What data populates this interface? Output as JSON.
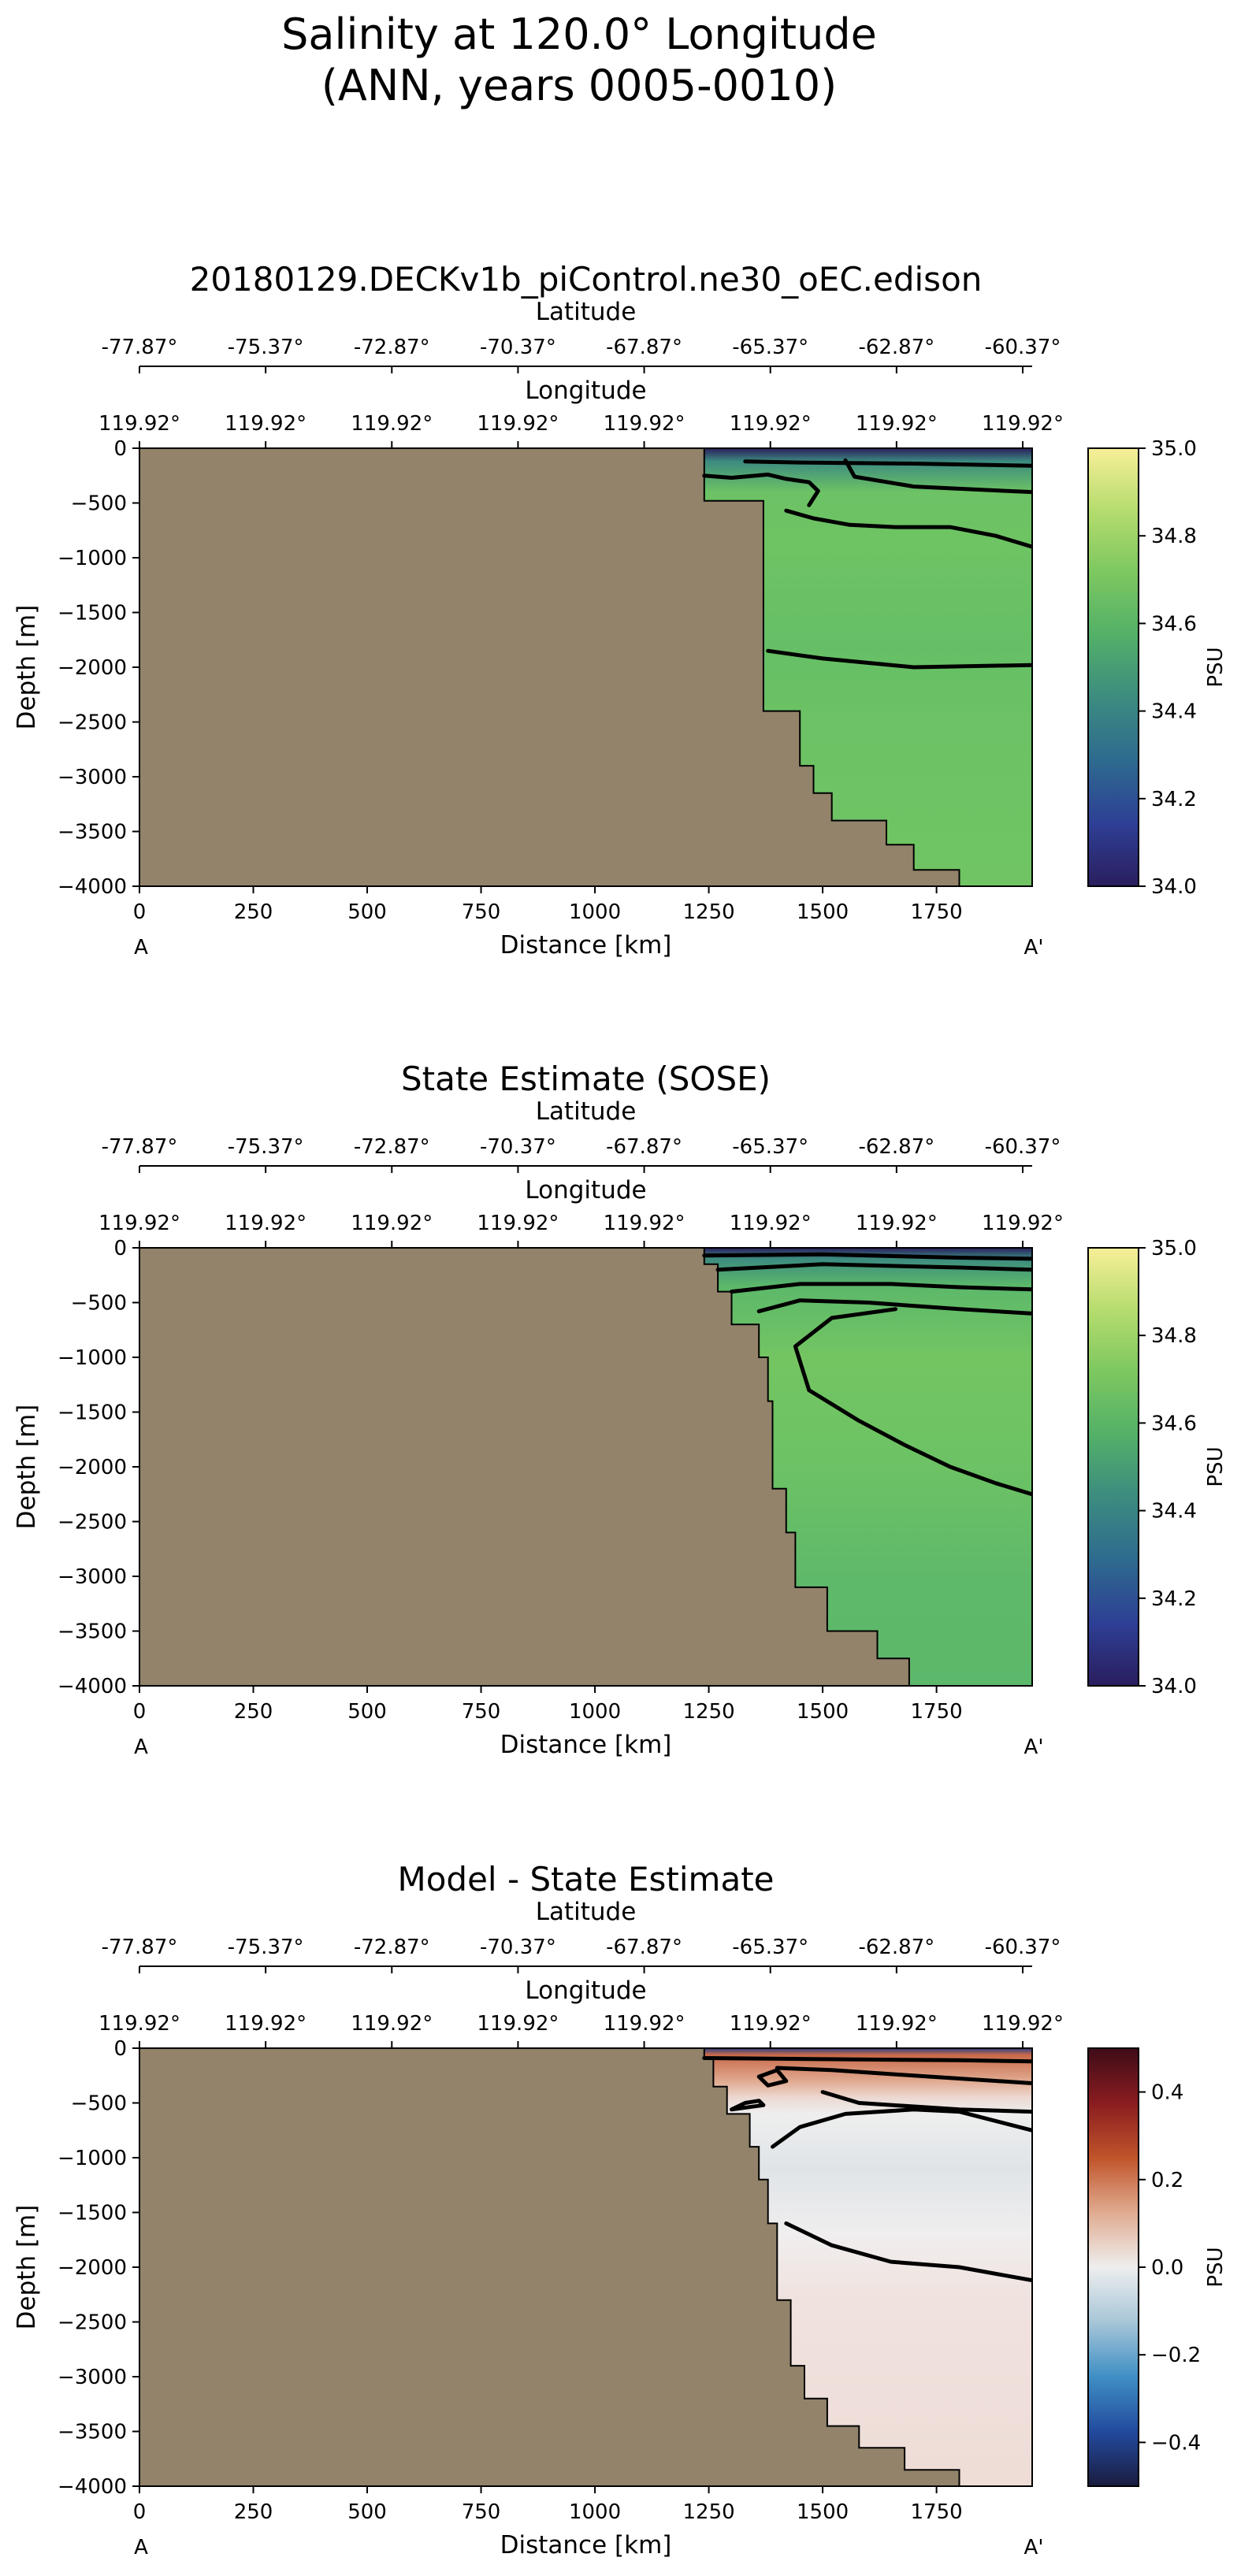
{
  "figure": {
    "title_line1": "Salinity at 120.0° Longitude",
    "title_line2": "(ANN, years 0005-0010)"
  },
  "chart_data": [
    {
      "type": "heatmap",
      "title": "20180129.DECKv1b_piControl.ne30_oEC.edison",
      "xlabel": "Distance [km]",
      "ylabel": "Depth [m]",
      "xlim": [
        0,
        1960
      ],
      "ylim": [
        -4000,
        0
      ],
      "x_ticks": [
        0,
        250,
        500,
        750,
        1000,
        1250,
        1500,
        1750
      ],
      "y_ticks": [
        0,
        -500,
        -1000,
        -1500,
        -2000,
        -2500,
        -3000,
        -3500,
        -4000
      ],
      "y_tick_labels": [
        "0",
        "−500",
        "−1000",
        "−1500",
        "−2000",
        "−2500",
        "−3000",
        "−3500",
        "−4000"
      ],
      "lat_axis_label": "Latitude",
      "lat_ticks": [
        "-77.87°",
        "-75.37°",
        "-72.87°",
        "-70.37°",
        "-67.87°",
        "-65.37°",
        "-62.87°",
        "-60.37°"
      ],
      "lon_axis_label": "Longitude",
      "lon_ticks": [
        "119.92°",
        "119.92°",
        "119.92°",
        "119.92°",
        "119.92°",
        "119.92°",
        "119.92°",
        "119.92°"
      ],
      "end_labels": [
        "A",
        "A'"
      ],
      "colorbar": {
        "label": "PSU",
        "min": 34.0,
        "max": 35.0,
        "ticks": [
          35.0,
          34.8,
          34.6,
          34.4,
          34.2,
          34.0
        ],
        "tick_labels": [
          "35.0",
          "34.8",
          "34.6",
          "34.4",
          "34.2",
          "34.0"
        ],
        "colors": [
          "#2a1e5e",
          "#2e3f95",
          "#2e6a8f",
          "#3c8b80",
          "#52b068",
          "#7cc760",
          "#b5dc6e",
          "#f8ef98"
        ]
      },
      "bathymetry": [
        [
          1240,
          0
        ],
        [
          1240,
          -480
        ],
        [
          1370,
          -480
        ],
        [
          1370,
          -2400
        ],
        [
          1450,
          -2400
        ],
        [
          1450,
          -2900
        ],
        [
          1480,
          -2900
        ],
        [
          1480,
          -3150
        ],
        [
          1520,
          -3150
        ],
        [
          1520,
          -3400
        ],
        [
          1640,
          -3400
        ],
        [
          1640,
          -3620
        ],
        [
          1700,
          -3620
        ],
        [
          1700,
          -3850
        ],
        [
          1800,
          -3850
        ],
        [
          1800,
          -4000
        ]
      ],
      "field": [
        [
          0,
          "#2a1e5e"
        ],
        [
          -120,
          "#3c8b80"
        ],
        [
          -400,
          "#6cc264"
        ],
        [
          -900,
          "#6ec363"
        ],
        [
          -1800,
          "#66bf66"
        ],
        [
          -2500,
          "#6cc264"
        ],
        [
          -4000,
          "#70c463"
        ]
      ],
      "contours": [
        [
          [
            1330,
            -120
          ],
          [
            1450,
            -130
          ],
          [
            1700,
            -140
          ],
          [
            1960,
            -160
          ]
        ],
        [
          [
            1240,
            -250
          ],
          [
            1300,
            -270
          ],
          [
            1380,
            -240
          ],
          [
            1420,
            -280
          ],
          [
            1470,
            -310
          ],
          [
            1490,
            -390
          ],
          [
            1470,
            -520
          ]
        ],
        [
          [
            1550,
            -110
          ],
          [
            1570,
            -260
          ],
          [
            1700,
            -350
          ],
          [
            1850,
            -380
          ],
          [
            1960,
            -400
          ]
        ],
        [
          [
            1420,
            -570
          ],
          [
            1480,
            -640
          ],
          [
            1560,
            -700
          ],
          [
            1660,
            -720
          ],
          [
            1780,
            -720
          ],
          [
            1880,
            -800
          ],
          [
            1960,
            -900
          ]
        ],
        [
          [
            1380,
            -1850
          ],
          [
            1500,
            -1920
          ],
          [
            1700,
            -2000
          ],
          [
            1960,
            -1980
          ]
        ]
      ]
    },
    {
      "type": "heatmap",
      "title": "State Estimate (SOSE)",
      "xlabel": "Distance [km]",
      "ylabel": "Depth [m]",
      "xlim": [
        0,
        1960
      ],
      "ylim": [
        -4000,
        0
      ],
      "x_ticks": [
        0,
        250,
        500,
        750,
        1000,
        1250,
        1500,
        1750
      ],
      "y_ticks": [
        0,
        -500,
        -1000,
        -1500,
        -2000,
        -2500,
        -3000,
        -3500,
        -4000
      ],
      "y_tick_labels": [
        "0",
        "−500",
        "−1000",
        "−1500",
        "−2000",
        "−2500",
        "−3000",
        "−3500",
        "−4000"
      ],
      "lat_axis_label": "Latitude",
      "lat_ticks": [
        "-77.87°",
        "-75.37°",
        "-72.87°",
        "-70.37°",
        "-67.87°",
        "-65.37°",
        "-62.87°",
        "-60.37°"
      ],
      "lon_axis_label": "Longitude",
      "lon_ticks": [
        "119.92°",
        "119.92°",
        "119.92°",
        "119.92°",
        "119.92°",
        "119.92°",
        "119.92°",
        "119.92°"
      ],
      "end_labels": [
        "A",
        "A'"
      ],
      "colorbar": {
        "label": "PSU",
        "min": 34.0,
        "max": 35.0,
        "ticks": [
          35.0,
          34.8,
          34.6,
          34.4,
          34.2,
          34.0
        ],
        "tick_labels": [
          "35.0",
          "34.8",
          "34.6",
          "34.4",
          "34.2",
          "34.0"
        ],
        "colors": [
          "#2a1e5e",
          "#2e3f95",
          "#2e6a8f",
          "#3c8b80",
          "#52b068",
          "#7cc760",
          "#b5dc6e",
          "#f8ef98"
        ]
      },
      "bathymetry": [
        [
          1240,
          0
        ],
        [
          1240,
          -150
        ],
        [
          1270,
          -150
        ],
        [
          1270,
          -400
        ],
        [
          1300,
          -400
        ],
        [
          1300,
          -700
        ],
        [
          1360,
          -700
        ],
        [
          1360,
          -1000
        ],
        [
          1380,
          -1000
        ],
        [
          1380,
          -1400
        ],
        [
          1390,
          -1400
        ],
        [
          1390,
          -2200
        ],
        [
          1420,
          -2200
        ],
        [
          1420,
          -2600
        ],
        [
          1440,
          -2600
        ],
        [
          1440,
          -3100
        ],
        [
          1510,
          -3100
        ],
        [
          1510,
          -3500
        ],
        [
          1620,
          -3500
        ],
        [
          1620,
          -3750
        ],
        [
          1690,
          -3750
        ],
        [
          1690,
          -4000
        ]
      ],
      "field": [
        [
          0,
          "#2a1e5e"
        ],
        [
          -100,
          "#3c8b80"
        ],
        [
          -350,
          "#5cb86a"
        ],
        [
          -1000,
          "#74c562"
        ],
        [
          -2000,
          "#6cc264"
        ],
        [
          -3000,
          "#5fb96a"
        ],
        [
          -4000,
          "#5cb86a"
        ]
      ],
      "contours": [
        [
          [
            1240,
            -70
          ],
          [
            1500,
            -60
          ],
          [
            1800,
            -90
          ],
          [
            1960,
            -100
          ]
        ],
        [
          [
            1270,
            -200
          ],
          [
            1500,
            -150
          ],
          [
            1800,
            -180
          ],
          [
            1960,
            -200
          ]
        ],
        [
          [
            1300,
            -400
          ],
          [
            1450,
            -330
          ],
          [
            1650,
            -330
          ],
          [
            1800,
            -360
          ],
          [
            1960,
            -380
          ]
        ],
        [
          [
            1360,
            -580
          ],
          [
            1450,
            -480
          ],
          [
            1600,
            -500
          ],
          [
            1800,
            -560
          ],
          [
            1960,
            -600
          ]
        ],
        [
          [
            1660,
            -560
          ],
          [
            1520,
            -640
          ],
          [
            1440,
            -900
          ],
          [
            1470,
            -1300
          ],
          [
            1580,
            -1580
          ],
          [
            1680,
            -1800
          ],
          [
            1780,
            -2000
          ],
          [
            1880,
            -2150
          ],
          [
            1960,
            -2250
          ]
        ]
      ]
    },
    {
      "type": "heatmap",
      "title": "Model - State Estimate",
      "xlabel": "Distance [km]",
      "ylabel": "Depth [m]",
      "xlim": [
        0,
        1960
      ],
      "ylim": [
        -4000,
        0
      ],
      "x_ticks": [
        0,
        250,
        500,
        750,
        1000,
        1250,
        1500,
        1750
      ],
      "y_ticks": [
        0,
        -500,
        -1000,
        -1500,
        -2000,
        -2500,
        -3000,
        -3500,
        -4000
      ],
      "y_tick_labels": [
        "0",
        "−500",
        "−1000",
        "−1500",
        "−2000",
        "−2500",
        "−3000",
        "−3500",
        "−4000"
      ],
      "lat_axis_label": "Latitude",
      "lat_ticks": [
        "-77.87°",
        "-75.37°",
        "-72.87°",
        "-70.37°",
        "-67.87°",
        "-65.37°",
        "-62.87°",
        "-60.37°"
      ],
      "lon_axis_label": "Longitude",
      "lon_ticks": [
        "119.92°",
        "119.92°",
        "119.92°",
        "119.92°",
        "119.92°",
        "119.92°",
        "119.92°",
        "119.92°"
      ],
      "end_labels": [
        "A",
        "A'"
      ],
      "colorbar": {
        "label": "PSU",
        "min": -0.5,
        "max": 0.5,
        "ticks": [
          0.4,
          0.2,
          0.0,
          -0.2,
          -0.4
        ],
        "tick_labels": [
          "0.4",
          "0.2",
          "0.0",
          "−0.2",
          "−0.4"
        ],
        "colors": [
          "#1a1c3e",
          "#234a9e",
          "#3f8fc4",
          "#a8c6d8",
          "#eeeeee",
          "#e0ab90",
          "#c0542a",
          "#8a1c20",
          "#3e0c18"
        ]
      },
      "bathymetry": [
        [
          1240,
          0
        ],
        [
          1240,
          -100
        ],
        [
          1260,
          -100
        ],
        [
          1260,
          -350
        ],
        [
          1290,
          -350
        ],
        [
          1290,
          -600
        ],
        [
          1340,
          -600
        ],
        [
          1340,
          -900
        ],
        [
          1360,
          -900
        ],
        [
          1360,
          -1200
        ],
        [
          1380,
          -1200
        ],
        [
          1380,
          -1600
        ],
        [
          1400,
          -1600
        ],
        [
          1400,
          -2300
        ],
        [
          1430,
          -2300
        ],
        [
          1430,
          -2900
        ],
        [
          1460,
          -2900
        ],
        [
          1460,
          -3200
        ],
        [
          1510,
          -3200
        ],
        [
          1510,
          -3450
        ],
        [
          1580,
          -3450
        ],
        [
          1580,
          -3650
        ],
        [
          1680,
          -3650
        ],
        [
          1680,
          -3850
        ],
        [
          1800,
          -3850
        ],
        [
          1800,
          -4000
        ]
      ],
      "field": [
        [
          0,
          "#eae4e2"
        ],
        [
          -350,
          "#e9cbc0"
        ],
        [
          -600,
          "#eeeeee"
        ],
        [
          -1100,
          "#dfe4e8"
        ],
        [
          -1700,
          "#f0eeee"
        ],
        [
          -2300,
          "#f0e2de"
        ],
        [
          -4000,
          "#eedcd6"
        ]
      ],
      "surface_band": [
        [
          0,
          "#2a3f86"
        ],
        [
          -60,
          "#c8694a"
        ],
        [
          -300,
          "#e0aa90"
        ],
        [
          -450,
          "#edd8d0"
        ]
      ],
      "contours": [
        [
          [
            1240,
            -90
          ],
          [
            1500,
            -100
          ],
          [
            1800,
            -110
          ],
          [
            1960,
            -120
          ]
        ],
        [
          [
            1400,
            -180
          ],
          [
            1520,
            -200
          ],
          [
            1700,
            -250
          ],
          [
            1960,
            -320
          ]
        ],
        [
          [
            1360,
            -260
          ],
          [
            1380,
            -340
          ],
          [
            1420,
            -300
          ],
          [
            1400,
            -200
          ],
          [
            1360,
            -260
          ]
        ],
        [
          [
            1300,
            -560
          ],
          [
            1330,
            -500
          ],
          [
            1360,
            -480
          ],
          [
            1370,
            -520
          ],
          [
            1300,
            -560
          ]
        ],
        [
          [
            1500,
            -400
          ],
          [
            1580,
            -500
          ],
          [
            1800,
            -560
          ],
          [
            1960,
            -580
          ]
        ],
        [
          [
            1390,
            -900
          ],
          [
            1450,
            -720
          ],
          [
            1550,
            -600
          ],
          [
            1700,
            -560
          ],
          [
            1800,
            -580
          ],
          [
            1960,
            -750
          ]
        ],
        [
          [
            1420,
            -1600
          ],
          [
            1520,
            -1800
          ],
          [
            1650,
            -1950
          ],
          [
            1800,
            -2000
          ],
          [
            1960,
            -2120
          ]
        ]
      ]
    }
  ]
}
